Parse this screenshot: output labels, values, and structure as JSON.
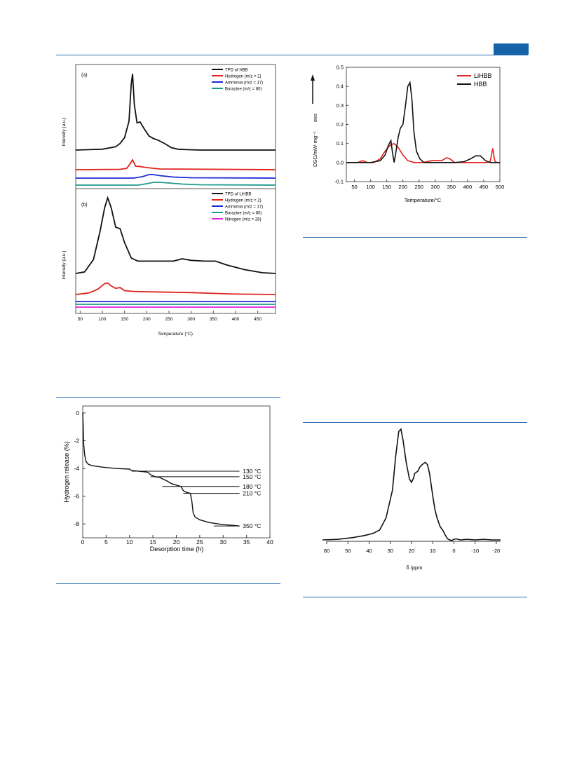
{
  "colors": {
    "rule": "#2a6fb0",
    "tab": "#1463a8",
    "black": "#111111",
    "red": "#e0201c",
    "blue": "#1d2bd6",
    "teal": "#1f9a8e",
    "magenta": "#e020e0"
  },
  "fig_tpd": {
    "chart_data": [
      {
        "type": "line",
        "panel_label": "(a)",
        "ylabel": "Intensity (a.u.)",
        "xlim": [
          40,
          490
        ],
        "series": [
          {
            "name": "TPD of HBB",
            "color": "#111111",
            "x": [
              40,
              100,
              130,
              140,
              150,
              160,
              165,
              168,
              172,
              178,
              185,
              195,
              205,
              215,
              225,
              240,
              255,
              270,
              290,
              320,
              490
            ],
            "y": [
              0.0,
              0.01,
              0.04,
              0.08,
              0.15,
              0.35,
              0.8,
              0.92,
              0.55,
              0.33,
              0.34,
              0.25,
              0.17,
              0.14,
              0.12,
              0.08,
              0.03,
              0.01,
              0.005,
              0.0,
              0.0
            ]
          },
          {
            "name": "Hydrogen (m/z = 2)",
            "color": "#e0201c",
            "x": [
              40,
              140,
              155,
              162,
              168,
              175,
              185,
              200,
              230,
              490
            ],
            "y": [
              0.0,
              0.005,
              0.02,
              0.08,
              0.14,
              0.05,
              0.045,
              0.03,
              0.01,
              0.0
            ]
          },
          {
            "name": "Ammonia (m/z = 17)",
            "color": "#1d2bd6",
            "x": [
              40,
              170,
              190,
              205,
              215,
              230,
              260,
              300,
              490
            ],
            "y": [
              0.0,
              0.0,
              0.02,
              0.05,
              0.05,
              0.035,
              0.015,
              0.005,
              0.0
            ]
          },
          {
            "name": "Borazine (m/z = 80)",
            "color": "#1f9a8e",
            "x": [
              40,
              180,
              200,
              215,
              230,
              250,
              280,
              320,
              490
            ],
            "y": [
              0.0,
              0.0,
              0.02,
              0.04,
              0.04,
              0.03,
              0.015,
              0.005,
              0.0
            ]
          }
        ]
      },
      {
        "type": "line",
        "panel_label": "(b)",
        "ylabel": "Intensity (a.u.)",
        "xlabel": "Temperature (°C)",
        "xlim": [
          40,
          490
        ],
        "xticks": [
          50,
          100,
          150,
          200,
          250,
          300,
          350,
          400,
          450
        ],
        "series": [
          {
            "name": "TPD of LiHBB",
            "color": "#111111",
            "x": [
              40,
              60,
              80,
              95,
              105,
              112,
              120,
              130,
              140,
              150,
              165,
              180,
              200,
              230,
              260,
              280,
              300,
              330,
              355,
              380,
              420,
              460,
              490
            ],
            "y": [
              0.0,
              0.02,
              0.18,
              0.55,
              0.85,
              0.98,
              0.85,
              0.6,
              0.58,
              0.4,
              0.2,
              0.16,
              0.16,
              0.16,
              0.16,
              0.19,
              0.17,
              0.16,
              0.16,
              0.11,
              0.05,
              0.01,
              0.0
            ]
          },
          {
            "name": "Hydrogen (m/z = 2)",
            "color": "#e0201c",
            "x": [
              40,
              70,
              90,
              105,
              112,
              120,
              130,
              140,
              150,
              170,
              200,
              250,
              300,
              350,
              400,
              490
            ],
            "y": [
              0.0,
              0.02,
              0.07,
              0.14,
              0.15,
              0.11,
              0.08,
              0.09,
              0.05,
              0.04,
              0.035,
              0.03,
              0.025,
              0.015,
              0.005,
              0.0
            ]
          },
          {
            "name": "Ammonia (m/z = 17)",
            "color": "#1d2bd6",
            "x": [
              40,
              490
            ],
            "y": [
              0,
              0
            ]
          },
          {
            "name": "Borazine (m/z = 80)",
            "color": "#1f9a8e",
            "x": [
              40,
              490
            ],
            "y": [
              0,
              0
            ]
          },
          {
            "name": "Nitrogen (m/z = 28)",
            "color": "#e020e0",
            "x": [
              40,
              490
            ],
            "y": [
              0,
              0
            ]
          }
        ]
      }
    ]
  },
  "fig_dsc": {
    "chart_data": {
      "type": "line",
      "xlabel": "Temperature/°C",
      "ylabel": "DSC/mW·mg⁻¹",
      "arrow_label": "exo",
      "xlim": [
        25,
        500
      ],
      "ylim": [
        -0.1,
        0.5
      ],
      "xticks": [
        50,
        100,
        150,
        200,
        250,
        300,
        350,
        400,
        450,
        500
      ],
      "yticks": [
        -0.1,
        0.0,
        0.1,
        0.2,
        0.3,
        0.4,
        0.5
      ],
      "ytick_labels": [
        "-0.1",
        "0.0",
        "0.1",
        "0.2",
        "0.3",
        "0.4",
        "0.5"
      ],
      "legend_position": "top-right",
      "series": [
        {
          "name": "LiHBB",
          "color": "#e0201c",
          "x": [
            25,
            60,
            75,
            90,
            110,
            130,
            145,
            160,
            172,
            185,
            200,
            215,
            235,
            260,
            290,
            320,
            335,
            345,
            360,
            390,
            420,
            460,
            470,
            478,
            484,
            490,
            500
          ],
          "y": [
            0.0,
            0.0,
            0.01,
            0.0,
            0.0,
            0.02,
            0.06,
            0.09,
            0.1,
            0.08,
            0.04,
            0.01,
            0.0,
            0.0,
            0.01,
            0.01,
            0.025,
            0.02,
            0.0,
            0.0,
            0.0,
            0.0,
            0.005,
            0.075,
            0.01,
            0.0,
            0.0
          ]
        },
        {
          "name": "HBB",
          "color": "#111111",
          "x": [
            25,
            100,
            130,
            145,
            155,
            163,
            168,
            173,
            178,
            185,
            192,
            200,
            208,
            215,
            222,
            228,
            234,
            242,
            252,
            265,
            280,
            300,
            330,
            360,
            390,
            410,
            425,
            440,
            455,
            470,
            500
          ],
          "y": [
            0.0,
            0.0,
            0.01,
            0.04,
            0.09,
            0.115,
            0.05,
            0.0,
            0.05,
            0.13,
            0.18,
            0.2,
            0.3,
            0.4,
            0.42,
            0.33,
            0.16,
            0.06,
            0.02,
            0.0,
            0.0,
            0.0,
            0.0,
            0.0,
            0.005,
            0.02,
            0.035,
            0.035,
            0.01,
            0.0,
            0.0
          ]
        }
      ]
    }
  },
  "fig_release": {
    "chart_data": {
      "type": "line",
      "xlabel": "Desorption time (h)",
      "ylabel": "Hydrogen release (%)",
      "xlim": [
        0,
        40
      ],
      "ylim": [
        -9,
        0.5
      ],
      "xticks": [
        0,
        5,
        10,
        15,
        20,
        25,
        30,
        35,
        40
      ],
      "yticks": [
        0,
        -2,
        -4,
        -6,
        -8
      ],
      "ytick_labels": [
        "0",
        "-2",
        "-4",
        "-6",
        "-8"
      ],
      "series": [
        {
          "name": "",
          "color": "#111111",
          "x": [
            0,
            0.1,
            0.2,
            0.4,
            0.7,
            1.2,
            2,
            4,
            7,
            10,
            10.4,
            12,
            13.5,
            14,
            14.5,
            15.5,
            16.5,
            17,
            18,
            19,
            20,
            20.5,
            21,
            21.5,
            22,
            22.5,
            23,
            23.3,
            23.6,
            24,
            25,
            27,
            30,
            32,
            33.5
          ],
          "y": [
            0,
            -1.0,
            -2.2,
            -3.0,
            -3.5,
            -3.7,
            -3.8,
            -3.9,
            -4.0,
            -4.05,
            -4.15,
            -4.2,
            -4.25,
            -4.3,
            -4.45,
            -4.6,
            -4.65,
            -4.75,
            -4.9,
            -5.1,
            -5.2,
            -5.25,
            -5.3,
            -5.6,
            -5.7,
            -5.75,
            -5.8,
            -6.3,
            -7.2,
            -7.5,
            -7.7,
            -7.9,
            -8.05,
            -8.1,
            -8.15
          ]
        }
      ],
      "annotations": [
        {
          "label": "130 °C",
          "y": -4.2,
          "x_start": 10.5
        },
        {
          "label": "150 °C",
          "y": -4.6,
          "x_start": 14.5
        },
        {
          "label": "180 °C",
          "y": -5.3,
          "x_start": 17.0
        },
        {
          "label": "210 °C",
          "y": -5.8,
          "x_start": 21.5
        },
        {
          "label": "350 °C",
          "y": -8.15,
          "x_start": 28.0
        }
      ]
    }
  },
  "fig_nmr": {
    "chart_data": {
      "type": "line",
      "xlabel": "δ /ppm",
      "xlim": [
        80,
        -20
      ],
      "xticks": [
        80,
        50,
        40,
        30,
        20,
        10,
        0,
        -10,
        -20
      ],
      "xtick_positions": [
        60,
        50,
        40,
        30,
        20,
        10,
        0,
        -10,
        -20
      ],
      "xtick_labels": [
        "80",
        "50",
        "40",
        "30",
        "20",
        "10",
        "0",
        "-10",
        "-20"
      ],
      "series": [
        {
          "name": "",
          "color": "#111111",
          "x": [
            62,
            55,
            48,
            42,
            38,
            35,
            32,
            29,
            27.5,
            26,
            25,
            24,
            22.5,
            21,
            20,
            19,
            18.5,
            17,
            16,
            15,
            13.5,
            12.5,
            11.5,
            10,
            9,
            8,
            6.5,
            5,
            4,
            3,
            2,
            1,
            0,
            -1,
            -3,
            -6,
            -10,
            -14,
            -18,
            -22
          ],
          "y": [
            0.0,
            0.005,
            0.02,
            0.04,
            0.06,
            0.09,
            0.2,
            0.45,
            0.75,
            0.98,
            1.0,
            0.9,
            0.7,
            0.55,
            0.52,
            0.56,
            0.6,
            0.62,
            0.66,
            0.68,
            0.7,
            0.68,
            0.6,
            0.4,
            0.28,
            0.2,
            0.12,
            0.08,
            0.04,
            0.01,
            0.0,
            -0.005,
            0.005,
            0.01,
            0.0,
            0.005,
            0.0,
            0.005,
            0.0,
            0.0
          ]
        }
      ]
    }
  }
}
